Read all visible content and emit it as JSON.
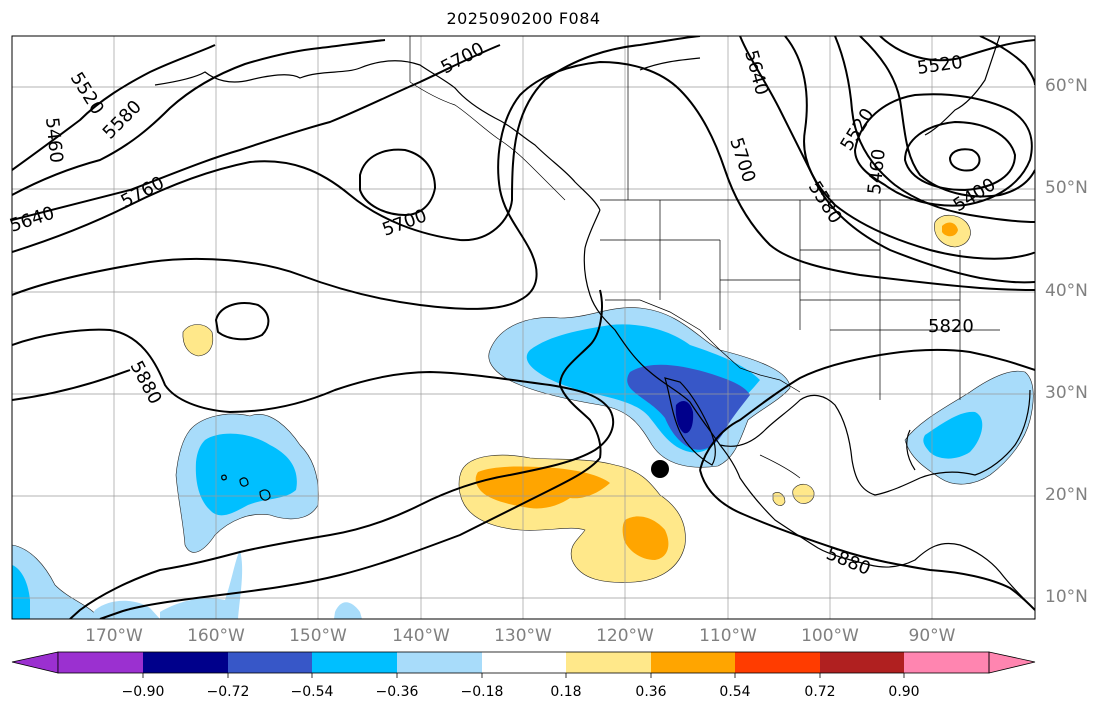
{
  "title": "2025090200 F084",
  "lat_labels": [
    "60°N",
    "50°N",
    "40°N",
    "30°N",
    "20°N",
    "10°N"
  ],
  "lon_labels": [
    "170°W",
    "160°W",
    "150°W",
    "140°W",
    "130°W",
    "120°W",
    "110°W",
    "100°W",
    "90°W"
  ],
  "contour_labels": [
    "5520",
    "5580",
    "5460",
    "5640",
    "5760",
    "5700",
    "5700",
    "5640",
    "5700",
    "5580",
    "5520",
    "5460",
    "5400",
    "5520",
    "5820",
    "5880",
    "5880"
  ],
  "colorbar": {
    "ticks": [
      "−0.90",
      "−0.72",
      "−0.54",
      "−0.36",
      "−0.18",
      "0.18",
      "0.36",
      "0.54",
      "0.72",
      "0.90"
    ],
    "colors": [
      "#9b30d0",
      "#00008b",
      "#3757c8",
      "#00bfff",
      "#a8dcfa",
      "#ffffff",
      "#ffe88a",
      "#ffa500",
      "#ff3c00",
      "#b02020",
      "#ff85b0"
    ]
  },
  "marker": "storm-center-dot"
}
